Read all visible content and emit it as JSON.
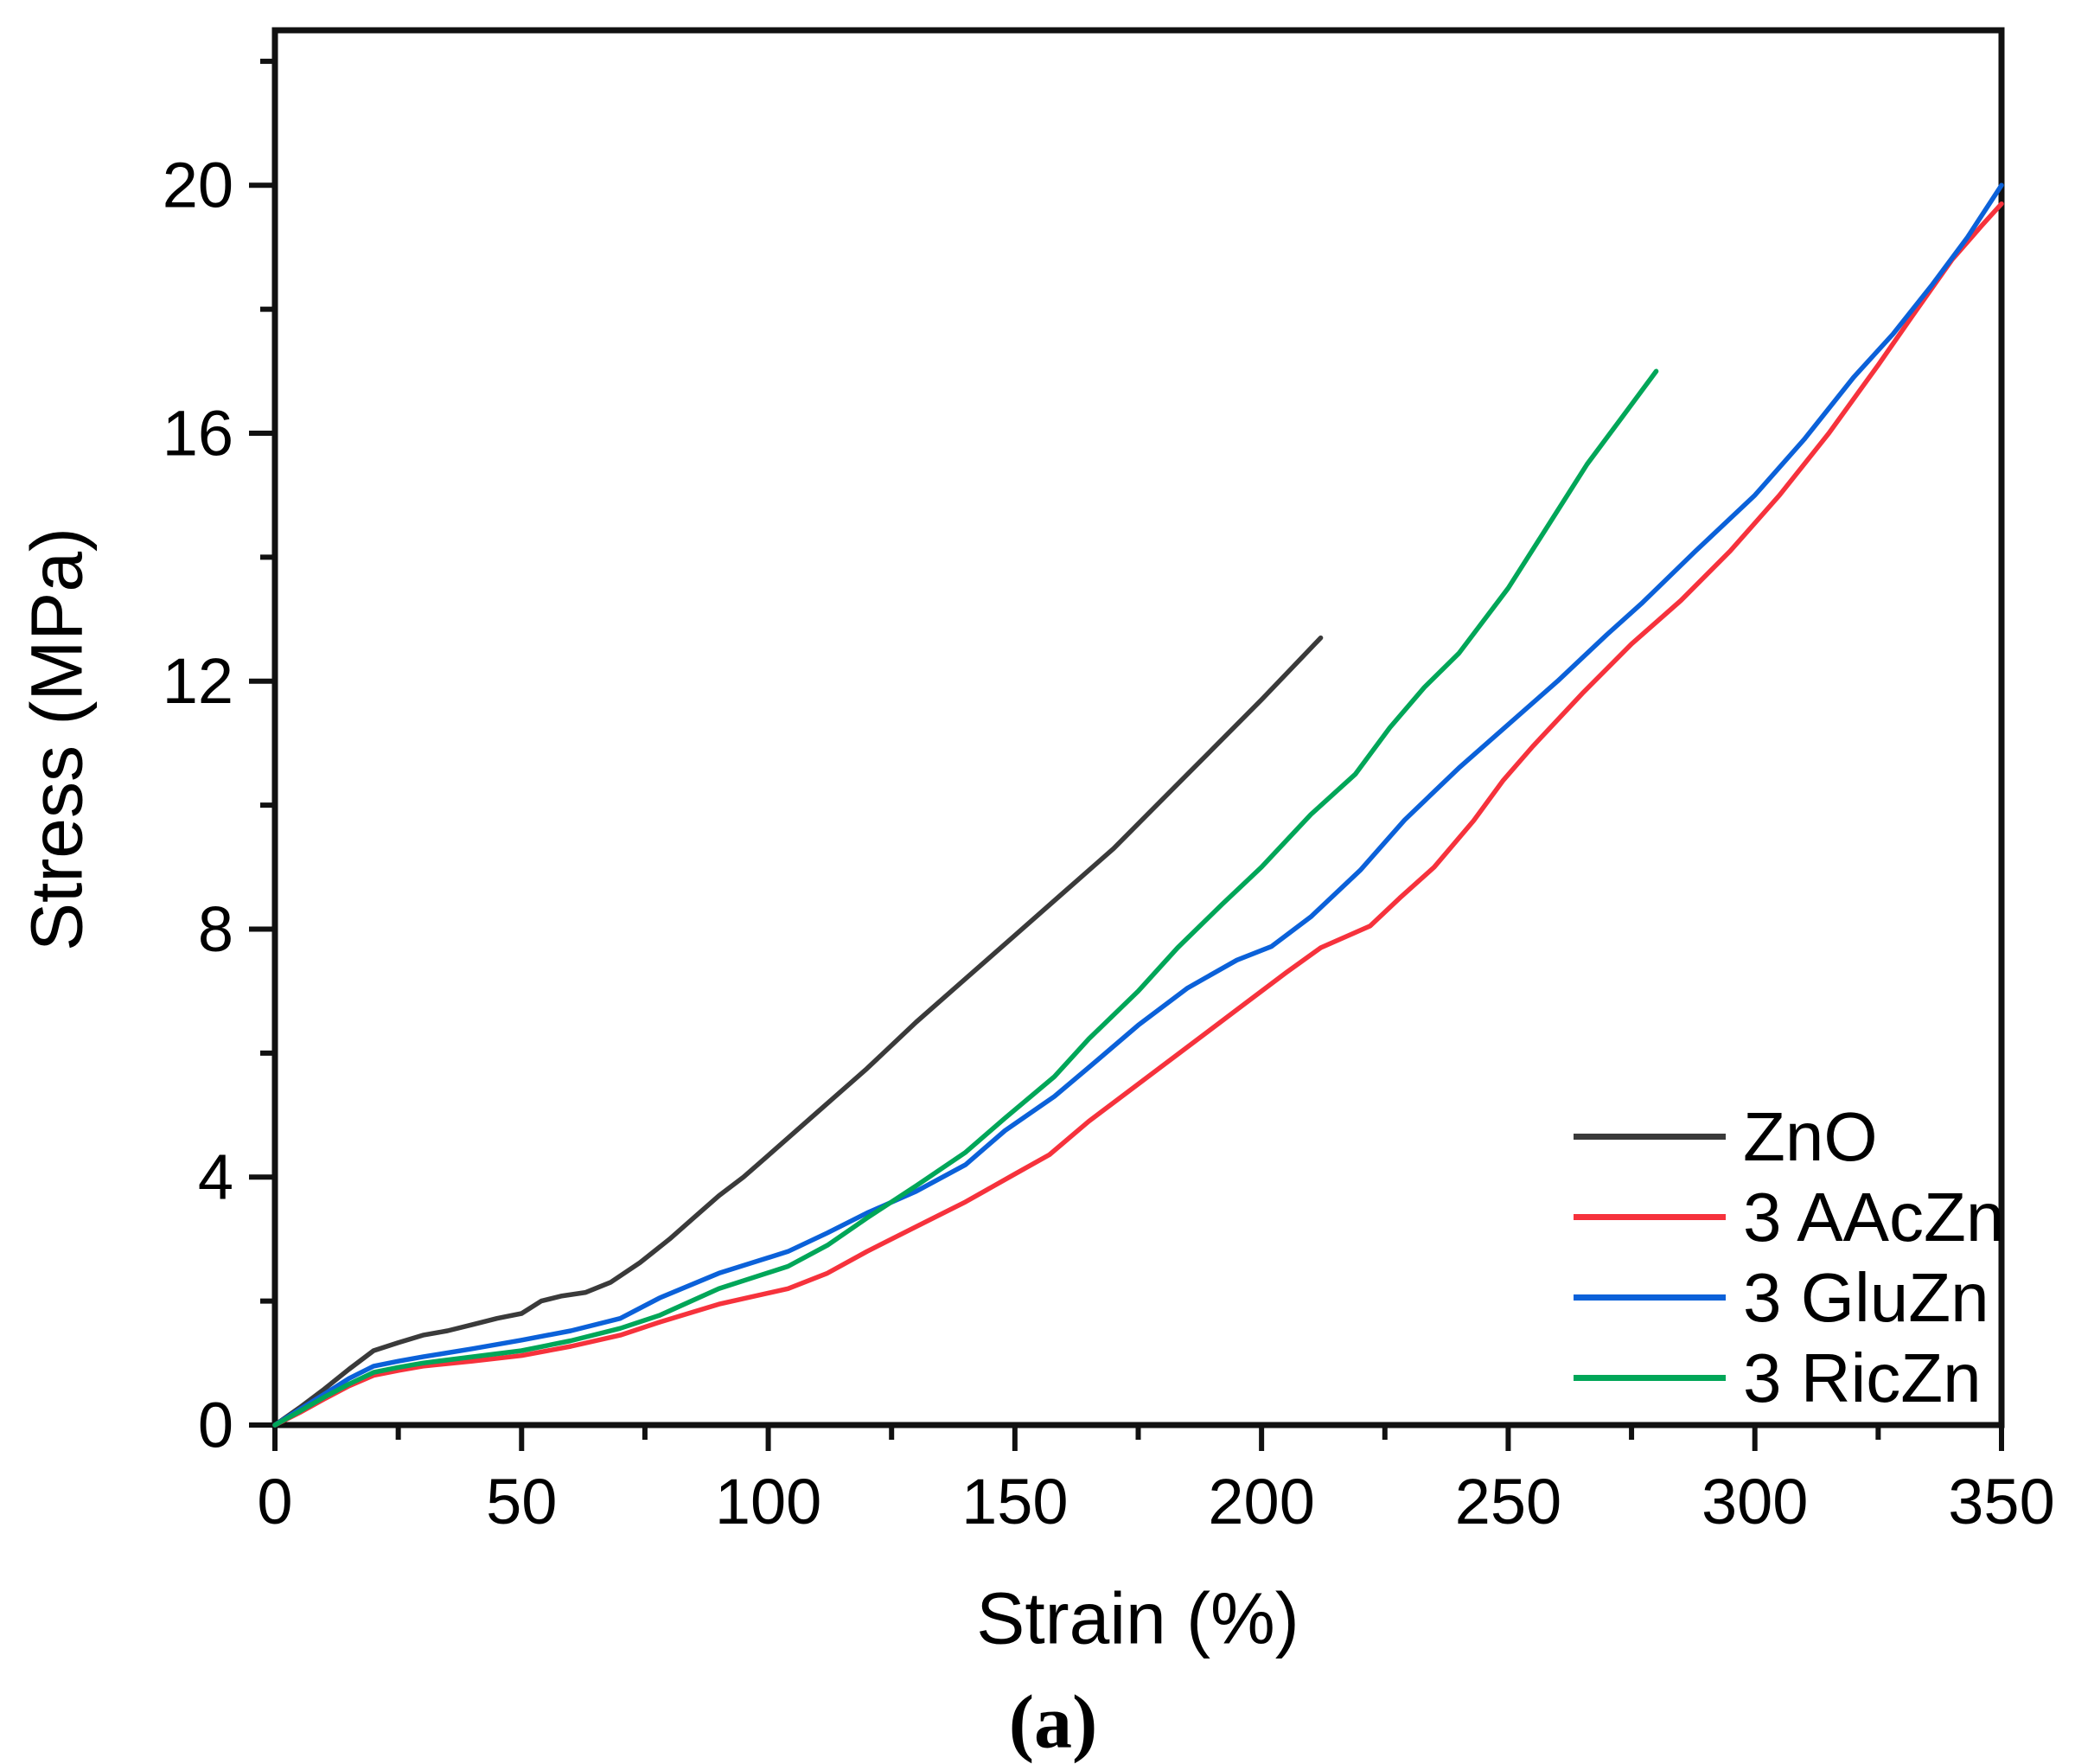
{
  "figure": {
    "caption": "(a)"
  },
  "chart_data": {
    "type": "line",
    "title": "",
    "xlabel": "Strain (%)",
    "ylabel": "Stress (MPa)",
    "xlim": [
      0,
      350
    ],
    "ylim": [
      0,
      22.5
    ],
    "x_major_ticks": [
      0,
      50,
      100,
      150,
      200,
      250,
      300,
      350
    ],
    "x_minor_ticks": [
      25,
      75,
      125,
      175,
      225,
      275,
      325
    ],
    "y_major_ticks": [
      0,
      4,
      8,
      12,
      16,
      20
    ],
    "y_minor_ticks": [
      2,
      6,
      10,
      14,
      18,
      22
    ],
    "grid": false,
    "legend_position": "lower right",
    "frame_color": "#111111",
    "series": [
      {
        "name": "ZnO",
        "color": "#3a3a3a",
        "points": [
          [
            0,
            0
          ],
          [
            5,
            0.28
          ],
          [
            10,
            0.58
          ],
          [
            15,
            0.9
          ],
          [
            20,
            1.2
          ],
          [
            25,
            1.33
          ],
          [
            30,
            1.45
          ],
          [
            35,
            1.52
          ],
          [
            40,
            1.62
          ],
          [
            45,
            1.72
          ],
          [
            50,
            1.8
          ],
          [
            54,
            2.0
          ],
          [
            58,
            2.08
          ],
          [
            63,
            2.14
          ],
          [
            68,
            2.3
          ],
          [
            74,
            2.62
          ],
          [
            80,
            3.0
          ],
          [
            85,
            3.35
          ],
          [
            90,
            3.7
          ],
          [
            95,
            4.0
          ],
          [
            100,
            4.35
          ],
          [
            110,
            5.05
          ],
          [
            120,
            5.75
          ],
          [
            130,
            6.5
          ],
          [
            140,
            7.2
          ],
          [
            150,
            7.9
          ],
          [
            160,
            8.6
          ],
          [
            170,
            9.3
          ],
          [
            180,
            10.1
          ],
          [
            190,
            10.9
          ],
          [
            200,
            11.7
          ],
          [
            206,
            12.2
          ],
          [
            212,
            12.7
          ]
        ]
      },
      {
        "name": "3 AAcZn",
        "color": "#f6323c",
        "points": [
          [
            0,
            0
          ],
          [
            5,
            0.2
          ],
          [
            10,
            0.42
          ],
          [
            15,
            0.63
          ],
          [
            20,
            0.8
          ],
          [
            25,
            0.88
          ],
          [
            30,
            0.95
          ],
          [
            40,
            1.03
          ],
          [
            50,
            1.12
          ],
          [
            60,
            1.27
          ],
          [
            70,
            1.45
          ],
          [
            78,
            1.66
          ],
          [
            90,
            1.95
          ],
          [
            104,
            2.2
          ],
          [
            112,
            2.45
          ],
          [
            120,
            2.8
          ],
          [
            130,
            3.2
          ],
          [
            140,
            3.6
          ],
          [
            150,
            4.05
          ],
          [
            157,
            4.36
          ],
          [
            165,
            4.9
          ],
          [
            175,
            5.5
          ],
          [
            185,
            6.1
          ],
          [
            195,
            6.7
          ],
          [
            205,
            7.3
          ],
          [
            212,
            7.7
          ],
          [
            222,
            8.05
          ],
          [
            228,
            8.5
          ],
          [
            235,
            9.0
          ],
          [
            243,
            9.75
          ],
          [
            249,
            10.4
          ],
          [
            255,
            10.95
          ],
          [
            265,
            11.8
          ],
          [
            275,
            12.6
          ],
          [
            285,
            13.3
          ],
          [
            295,
            14.1
          ],
          [
            305,
            15.0
          ],
          [
            315,
            16.0
          ],
          [
            325,
            17.1
          ],
          [
            332,
            17.9
          ],
          [
            340,
            18.8
          ],
          [
            346,
            19.35
          ],
          [
            350,
            19.7
          ]
        ]
      },
      {
        "name": "3 GluZn",
        "color": "#0b61d9",
        "points": [
          [
            0,
            0
          ],
          [
            5,
            0.25
          ],
          [
            10,
            0.5
          ],
          [
            15,
            0.75
          ],
          [
            20,
            0.95
          ],
          [
            25,
            1.03
          ],
          [
            30,
            1.1
          ],
          [
            40,
            1.23
          ],
          [
            50,
            1.37
          ],
          [
            60,
            1.52
          ],
          [
            70,
            1.72
          ],
          [
            78,
            2.05
          ],
          [
            90,
            2.45
          ],
          [
            104,
            2.8
          ],
          [
            112,
            3.1
          ],
          [
            120,
            3.42
          ],
          [
            130,
            3.77
          ],
          [
            140,
            4.2
          ],
          [
            148,
            4.75
          ],
          [
            158,
            5.3
          ],
          [
            165,
            5.77
          ],
          [
            175,
            6.45
          ],
          [
            185,
            7.05
          ],
          [
            195,
            7.5
          ],
          [
            202,
            7.72
          ],
          [
            210,
            8.2
          ],
          [
            220,
            8.95
          ],
          [
            229,
            9.76
          ],
          [
            240,
            10.6
          ],
          [
            250,
            11.3
          ],
          [
            260,
            12.0
          ],
          [
            270,
            12.75
          ],
          [
            277,
            13.25
          ],
          [
            288,
            14.1
          ],
          [
            300,
            15.0
          ],
          [
            310,
            15.9
          ],
          [
            320,
            16.9
          ],
          [
            328,
            17.6
          ],
          [
            336,
            18.4
          ],
          [
            343,
            19.15
          ],
          [
            350,
            20.0
          ]
        ]
      },
      {
        "name": "3 RicZn",
        "color": "#00a658",
        "points": [
          [
            0,
            0
          ],
          [
            5,
            0.22
          ],
          [
            10,
            0.45
          ],
          [
            15,
            0.66
          ],
          [
            20,
            0.85
          ],
          [
            25,
            0.93
          ],
          [
            30,
            1.0
          ],
          [
            40,
            1.1
          ],
          [
            50,
            1.2
          ],
          [
            60,
            1.36
          ],
          [
            70,
            1.56
          ],
          [
            78,
            1.77
          ],
          [
            90,
            2.2
          ],
          [
            104,
            2.56
          ],
          [
            112,
            2.9
          ],
          [
            120,
            3.34
          ],
          [
            130,
            3.86
          ],
          [
            140,
            4.4
          ],
          [
            148,
            4.95
          ],
          [
            158,
            5.62
          ],
          [
            165,
            6.23
          ],
          [
            175,
            7.0
          ],
          [
            183,
            7.7
          ],
          [
            192,
            8.4
          ],
          [
            200,
            9.0
          ],
          [
            210,
            9.85
          ],
          [
            219,
            10.5
          ],
          [
            226,
            11.25
          ],
          [
            233,
            11.9
          ],
          [
            240,
            12.45
          ],
          [
            250,
            13.5
          ],
          [
            258,
            14.5
          ],
          [
            266,
            15.5
          ],
          [
            273,
            16.25
          ],
          [
            280,
            17.0
          ]
        ]
      }
    ]
  }
}
